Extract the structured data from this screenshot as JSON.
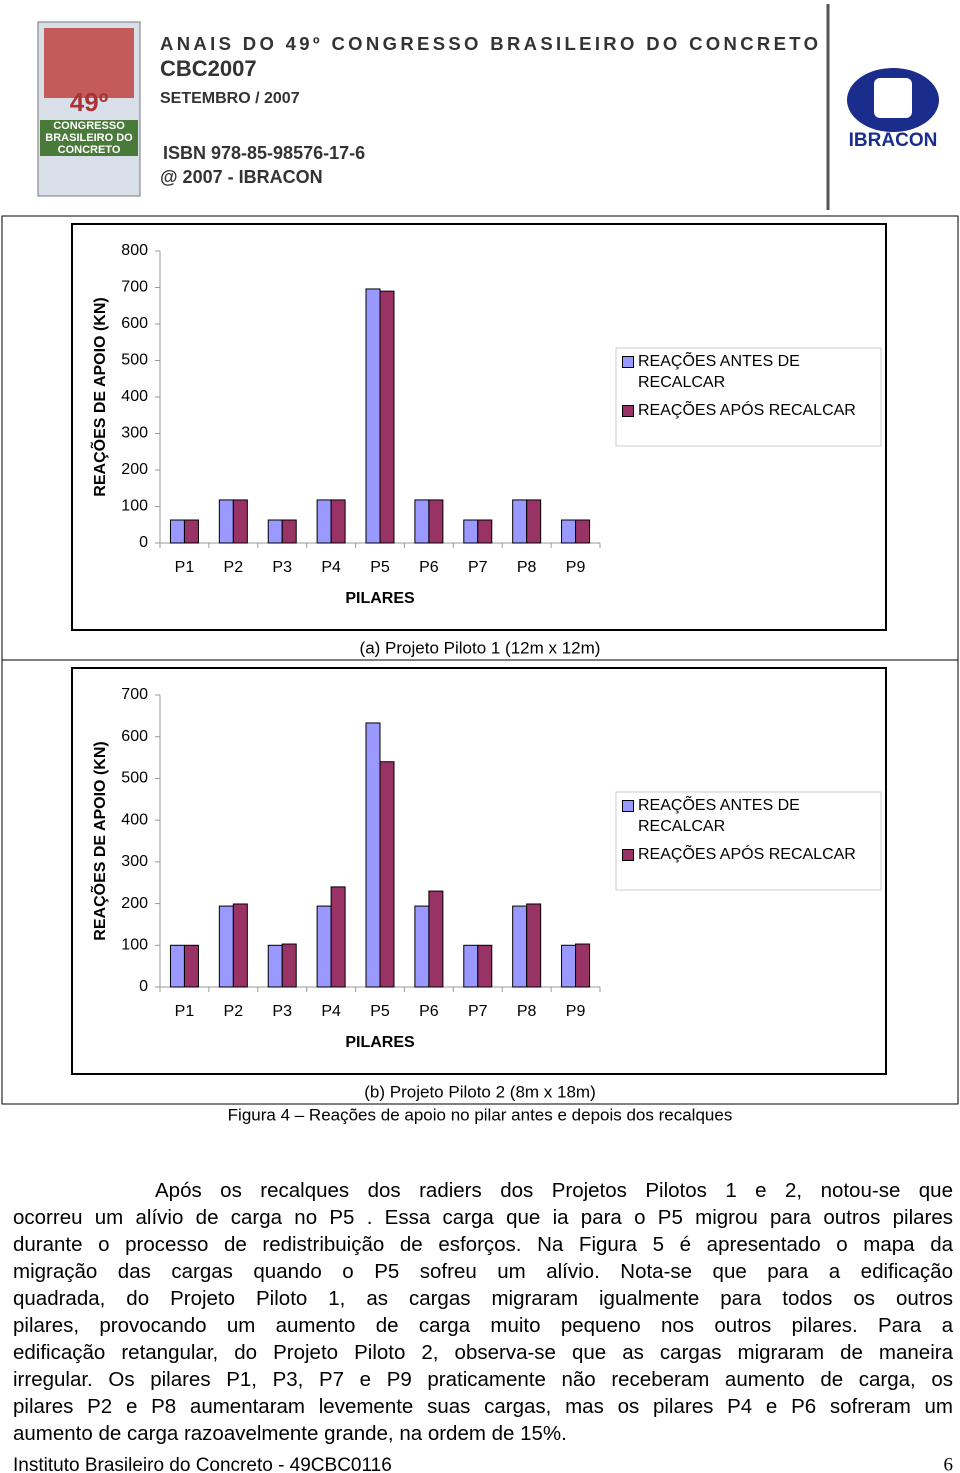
{
  "header": {
    "title": "ANAIS DO 49º CONGRESSO BRASILEIRO DO CONCRETO",
    "event": "CBC2007",
    "date": "SETEMBRO / 2007",
    "isbn": "ISBN 978-85-98576-17-6",
    "copyright": "@ 2007 - IBRACON",
    "logo_number": "49º",
    "logo_text": "CONGRESSO BRASILEIRO DO CONCRETO",
    "publisher": "IBRACON"
  },
  "chart_data": [
    {
      "type": "bar",
      "caption": "(a) Projeto Piloto 1 (12m x 12m)",
      "ylabel": "REAÇÕES DE APOIO (KN)",
      "xlabel": "PILARES",
      "categories": [
        "P1",
        "P2",
        "P3",
        "P4",
        "P5",
        "P6",
        "P7",
        "P8",
        "P9"
      ],
      "series": [
        {
          "name": "REAÇÕES ANTES DE RECALCAR",
          "color": "#9999ff",
          "values": [
            63,
            118,
            63,
            118,
            696,
            118,
            63,
            118,
            63
          ]
        },
        {
          "name": "REAÇÕES APÓS RECALCAR",
          "color": "#993366",
          "values": [
            63,
            118,
            63,
            118,
            690,
            118,
            63,
            118,
            63
          ]
        }
      ],
      "ylim": [
        0,
        800
      ],
      "yticks": [
        0,
        100,
        200,
        300,
        400,
        500,
        600,
        700,
        800
      ],
      "legend": "right"
    },
    {
      "type": "bar",
      "caption": "(b) Projeto Piloto 2 (8m x 18m)",
      "ylabel": "REAÇÕES DE APOIO (KN)",
      "xlabel": "PILARES",
      "categories": [
        "P1",
        "P2",
        "P3",
        "P4",
        "P5",
        "P6",
        "P7",
        "P8",
        "P9"
      ],
      "series": [
        {
          "name": "REAÇÕES ANTES DE RECALCAR",
          "color": "#9999ff",
          "values": [
            100,
            194,
            100,
            194,
            633,
            194,
            100,
            194,
            100
          ]
        },
        {
          "name": "REAÇÕES APÓS RECALCAR",
          "color": "#993366",
          "values": [
            100,
            199,
            103,
            240,
            540,
            230,
            100,
            199,
            103
          ]
        }
      ],
      "ylim": [
        0,
        700
      ],
      "yticks": [
        0,
        100,
        200,
        300,
        400,
        500,
        600,
        700
      ],
      "legend": "right"
    }
  ],
  "figure_caption": "Figura 4 – Reações de apoio no pilar antes e depois dos recalques",
  "body": {
    "lines": [
      "Após os recalques dos radiers dos Projetos Pilotos 1 e 2, notou-se que",
      "ocorreu um alívio de carga no P5 . Essa carga que ia para o P5 migrou para outros pilares",
      "durante o processo de redistribuição de esforços. Na Figura 5 é apresentado o mapa da",
      "migração das cargas quando o P5 sofreu um alívio. Nota-se que para a edificação",
      "quadrada, do Projeto Piloto 1, as cargas migraram igualmente para todos os outros",
      "pilares, provocando um aumento de carga muito pequeno nos outros pilares. Para a",
      "edificação retangular, do Projeto Piloto 2, observa-se que as cargas migraram de maneira",
      "irregular. Os pilares P1, P3, P7 e P9 praticamente não receberam aumento de carga, os",
      "pilares P2 e P8 aumentaram levemente suas cargas, mas os pilares P4 e P6 sofreram um",
      "aumento de carga razoavelmente grande, na ordem de 15%."
    ]
  },
  "footer": {
    "left": "Instituto Brasileiro do Concreto - 49CBC0116",
    "page": "6"
  }
}
